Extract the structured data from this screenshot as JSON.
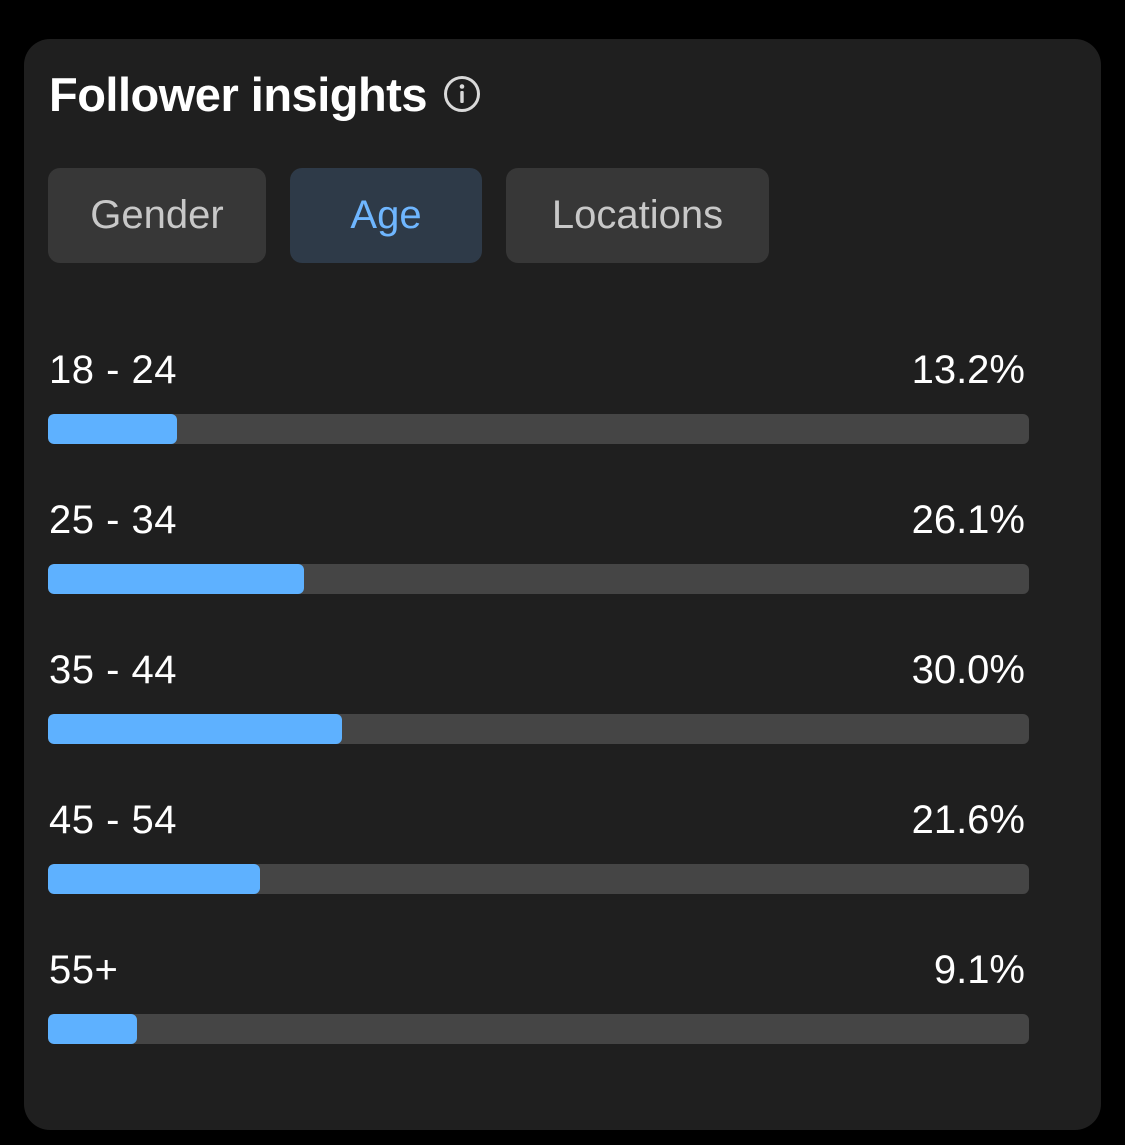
{
  "card": {
    "title": "Follower insights",
    "info_icon": "info-circle-icon"
  },
  "tabs": [
    {
      "label": "Gender",
      "active": false
    },
    {
      "label": "Age",
      "active": true
    },
    {
      "label": "Locations",
      "active": false
    }
  ],
  "colors": {
    "background": "#000000",
    "card": "#1f1f1f",
    "tab_inactive": "#373737",
    "tab_active": "#2e3a48",
    "tab_active_text": "#6fb6ff",
    "bar_track": "#454545",
    "bar_fill": "#5eb1ff"
  },
  "age_breakdown": [
    {
      "label": "18 - 24",
      "value_text": "13.2%",
      "percent": 13.2
    },
    {
      "label": "25 - 34",
      "value_text": "26.1%",
      "percent": 26.1
    },
    {
      "label": "35 - 44",
      "value_text": "30.0%",
      "percent": 30.0
    },
    {
      "label": "45 - 54",
      "value_text": "21.6%",
      "percent": 21.6
    },
    {
      "label": "55+",
      "value_text": "9.1%",
      "percent": 9.1
    }
  ]
}
